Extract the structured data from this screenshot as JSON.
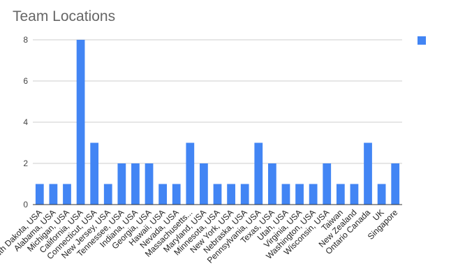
{
  "chart_data": {
    "type": "bar",
    "title": "Team Locations",
    "categories": [
      "South Dakota, USA",
      "Alabama, USA",
      "Michigan, USA",
      "California, USA",
      "Connecticut, USA",
      "New Jersey, USA",
      "Tennessee, USA",
      "Indiana, USA",
      "Georgia, USA",
      "Hawaii, USA",
      "Nevada, USA",
      "Massachusetts...",
      "Maryland, USA",
      "Minnesota, USA",
      "New York, USA",
      "Nebraska, USA",
      "Pennsylvania, USA",
      "Texas, USA",
      "Utah, USA",
      "Virginia, USA",
      "Washington, USA",
      "Wisconsin, USA",
      "Taiwan",
      "New Zealand",
      "Ontario Canada",
      "UK",
      "Singapore"
    ],
    "values": [
      1,
      1,
      1,
      8,
      3,
      1,
      2,
      2,
      2,
      1,
      1,
      3,
      2,
      1,
      1,
      1,
      3,
      2,
      1,
      1,
      1,
      2,
      1,
      1,
      3,
      1,
      2
    ],
    "yticks": [
      "0",
      "2",
      "4",
      "6",
      "8"
    ],
    "ylim": [
      0,
      8
    ],
    "xlabel": "",
    "ylabel": "",
    "grid": true,
    "legend": "top-right",
    "bar_color": "#4285f4",
    "grid_color": "#cccccc",
    "axis_color": "#333333"
  }
}
